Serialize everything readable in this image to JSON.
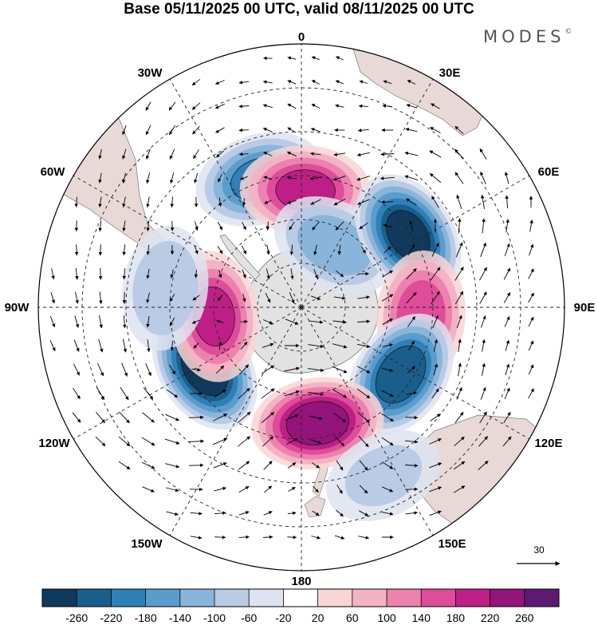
{
  "header": {
    "title": "Base 05/11/2025 00 UTC, valid 08/11/2025 00 UTC",
    "brand": "MODES",
    "brand_mark": "©"
  },
  "map": {
    "projection": "south polar stereographic",
    "longitude_labels": [
      {
        "id": "0",
        "text": "0"
      },
      {
        "id": "30E",
        "text": "30E"
      },
      {
        "id": "60E",
        "text": "60E"
      },
      {
        "id": "90E",
        "text": "90E"
      },
      {
        "id": "120E",
        "text": "120E"
      },
      {
        "id": "150E",
        "text": "150E"
      },
      {
        "id": "180",
        "text": "180"
      },
      {
        "id": "150W",
        "text": "150W"
      },
      {
        "id": "120W",
        "text": "120W"
      },
      {
        "id": "90W",
        "text": "90W"
      },
      {
        "id": "60W",
        "text": "60W"
      },
      {
        "id": "30W",
        "text": "30W"
      }
    ],
    "anomaly_centers": [
      {
        "name": "low-south-atlantic",
        "lon": -18,
        "colat": 46,
        "value": -180
      },
      {
        "name": "high-weddell-atlantic",
        "lon": 2,
        "colat": 40,
        "value": 180
      },
      {
        "name": "low-small-20e",
        "lon": 28,
        "colat": 24,
        "value": -120
      },
      {
        "name": "low-indian-60e",
        "lon": 56,
        "colat": 44,
        "value": -260
      },
      {
        "name": "high-indian-95e",
        "lon": 94,
        "colat": 41,
        "value": 160
      },
      {
        "name": "low-south-australia",
        "lon": 124,
        "colat": 41,
        "value": -240
      },
      {
        "name": "high-tasman-nz",
        "lon": 172,
        "colat": 40,
        "value": 240
      },
      {
        "name": "low-pacific-125w",
        "lon": -122,
        "colat": 39,
        "value": -280
      },
      {
        "name": "high-pacific-95w",
        "lon": -96,
        "colat": 30,
        "value": 180
      },
      {
        "name": "low-small-85w",
        "lon": -82,
        "colat": 47,
        "value": -90
      },
      {
        "name": "low-small-155e",
        "lon": 154,
        "colat": 64,
        "value": -60
      }
    ],
    "wind_reference": {
      "label": "30",
      "units": "vector scale"
    }
  },
  "colorbar": {
    "tick_labels": [
      "-260",
      "-220",
      "-180",
      "-140",
      "-100",
      "-60",
      "-20",
      "20",
      "60",
      "100",
      "140",
      "180",
      "220",
      "260"
    ],
    "colors": [
      "#0f3a5c",
      "#1a5e8c",
      "#3080b8",
      "#5a9dcc",
      "#8ab5da",
      "#b9cbe5",
      "#dde3f0",
      "#ffffff",
      "#f9d5d5",
      "#f4b3c5",
      "#ec82ad",
      "#de4c9a",
      "#bd1f86",
      "#93147a",
      "#5e1a72"
    ]
  }
}
